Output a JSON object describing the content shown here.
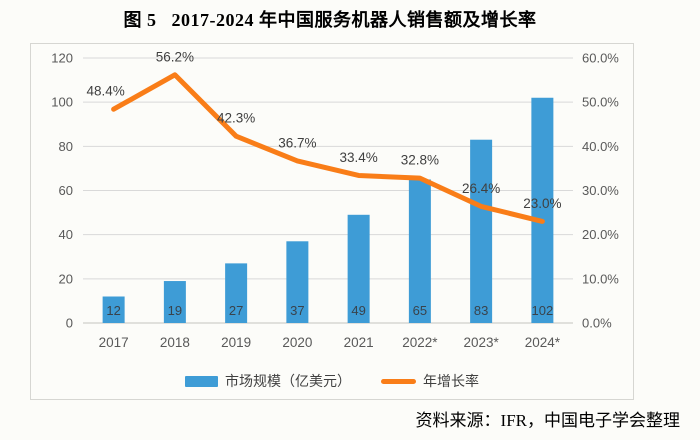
{
  "title": "图 5   2017-2024 年中国服务机器人销售额及增长率",
  "source_note": "资料来源：IFR，中国电子学会整理",
  "colors": {
    "bar": "#3e9cd6",
    "line": "#f97d18",
    "gridline": "#d9d9d9",
    "axis_line": "#c3c3c0",
    "tick_text": "#595959",
    "bar_label_text": "#39434c",
    "data_label_text": "#404040"
  },
  "chart_data": {
    "type": "bar",
    "subtype": "combo-bar-line",
    "title": "图 5 2017-2024 年中国服务机器人销售额及增长率",
    "categories": [
      "2017",
      "2018",
      "2019",
      "2020",
      "2021",
      "2022*",
      "2023*",
      "2024*"
    ],
    "series": [
      {
        "name": "市场规模（亿美元）",
        "type": "bar",
        "axis": "left",
        "values": [
          12,
          19,
          27,
          37,
          49,
          65,
          83,
          102
        ],
        "value_labels": [
          "12",
          "19",
          "27",
          "37",
          "49",
          "65",
          "83",
          "102"
        ]
      },
      {
        "name": "年增长率",
        "type": "line",
        "axis": "right",
        "values": [
          48.4,
          56.2,
          42.3,
          36.7,
          33.4,
          32.8,
          26.4,
          23.0
        ],
        "value_labels": [
          "48.4%",
          "56.2%",
          "42.3%",
          "36.7%",
          "33.4%",
          "32.8%",
          "26.4%",
          "23.0%"
        ]
      }
    ],
    "left_axis": {
      "min": 0,
      "max": 120,
      "step": 20,
      "ticks": [
        "0",
        "20",
        "40",
        "60",
        "80",
        "100",
        "120"
      ]
    },
    "right_axis": {
      "min": 0,
      "max": 60,
      "step": 10,
      "ticks": [
        "0.0%",
        "10.0%",
        "20.0%",
        "30.0%",
        "40.0%",
        "50.0%",
        "60.0%"
      ]
    },
    "grid": true,
    "legend_position": "bottom",
    "legend": [
      "市场规模（亿美元）",
      "年增长率"
    ]
  }
}
